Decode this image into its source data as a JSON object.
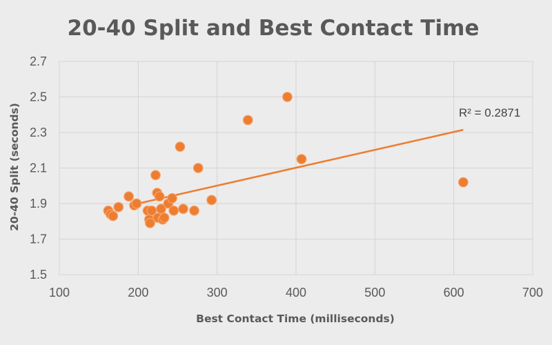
{
  "chart_data": {
    "type": "scatter",
    "title": "20-40 Split and Best Contact Time",
    "xlabel": "Best Contact Time (milliseconds)",
    "ylabel": "20-40 Split (seconds)",
    "xlim": [
      100,
      700
    ],
    "ylim": [
      1.5,
      2.7
    ],
    "xticks": [
      100,
      200,
      300,
      400,
      500,
      600,
      700
    ],
    "xtick_labels": [
      "100",
      "200",
      "300",
      "400",
      "500",
      "600",
      "700"
    ],
    "yticks": [
      1.5,
      1.7,
      1.9,
      2.1,
      2.3,
      2.5,
      2.7
    ],
    "ytick_labels": [
      "1.5",
      "1.7",
      "1.9",
      "2.1",
      "2.3",
      "2.5",
      "2.7"
    ],
    "grid": true,
    "legend": "none",
    "point_color": "#ed7d31",
    "trendline": {
      "type": "linear",
      "x_range": [
        195,
        612
      ],
      "y_range": [
        1.895,
        2.315
      ],
      "color": "#ed7d31",
      "r_squared_label": "R² = 0.2871"
    },
    "series": [
      {
        "x": [
          162,
          165,
          168,
          175,
          188,
          195,
          198,
          212,
          214,
          215,
          217,
          222,
          224,
          225,
          227,
          229,
          231,
          233,
          238,
          243,
          245,
          253,
          257,
          271,
          276,
          293,
          339,
          389,
          407,
          612
        ],
        "y": [
          1.86,
          1.84,
          1.83,
          1.88,
          1.94,
          1.89,
          1.9,
          1.86,
          1.81,
          1.79,
          1.86,
          2.06,
          1.96,
          1.82,
          1.94,
          1.87,
          1.81,
          1.82,
          1.9,
          1.93,
          1.86,
          2.22,
          1.87,
          1.86,
          2.1,
          1.92,
          2.37,
          2.5,
          2.15,
          2.02
        ]
      }
    ]
  }
}
